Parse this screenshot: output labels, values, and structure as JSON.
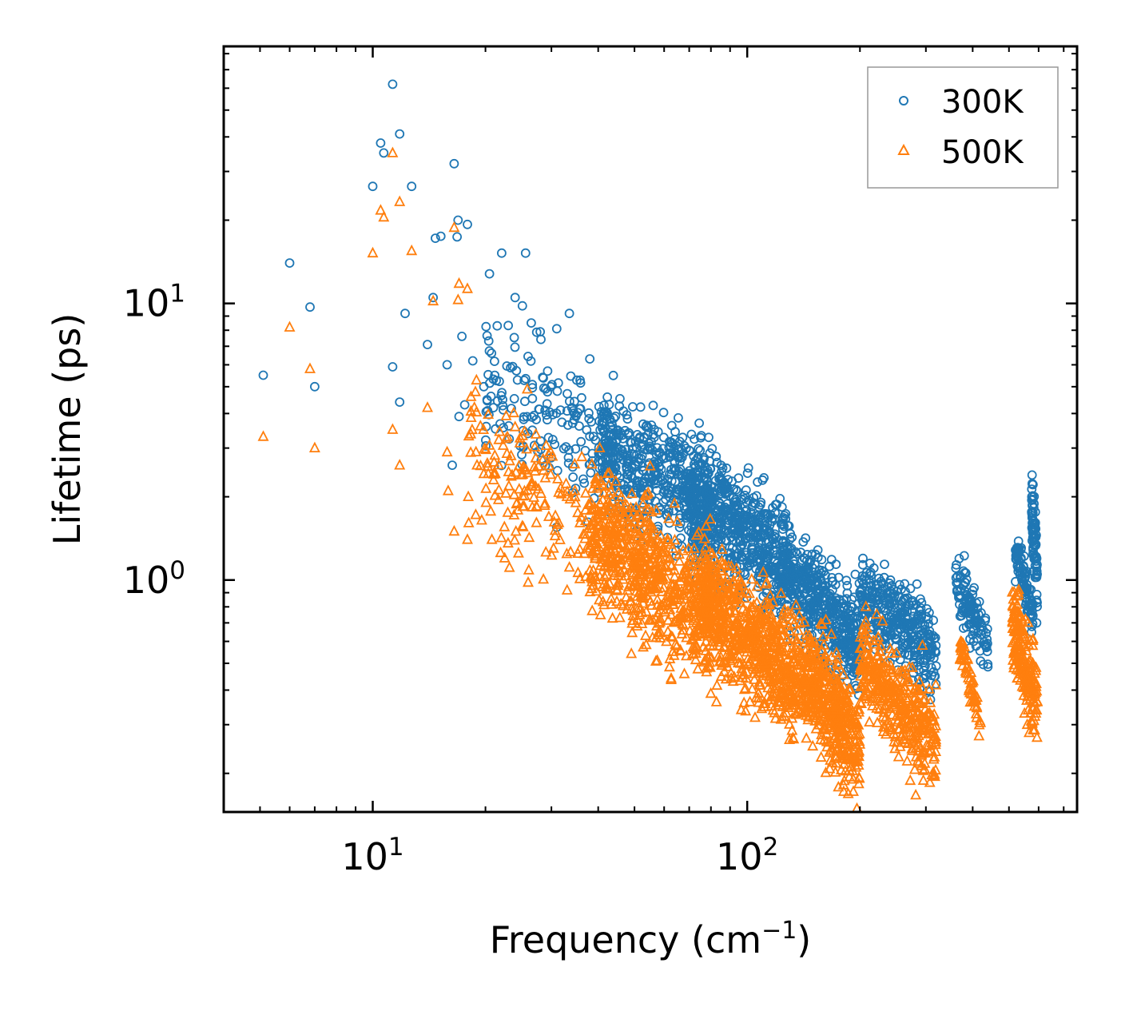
{
  "chart_data": {
    "type": "scatter",
    "title": "",
    "xlabel": "Frequency (cm",
    "xlabel_sup": "−1",
    "xlabel_close": ")",
    "ylabel": "Lifetime (ps)",
    "xscale": "log",
    "yscale": "log",
    "xlim": [
      4.0,
      760
    ],
    "ylim": [
      0.145,
      85
    ],
    "x_ticks": [
      {
        "base": "10",
        "exp": "1"
      },
      {
        "base": "10",
        "exp": "2"
      }
    ],
    "y_ticks": [
      {
        "base": "10",
        "exp": "0"
      },
      {
        "base": "10",
        "exp": "1"
      }
    ],
    "legend_position": "top-right",
    "series": [
      {
        "name": "300K",
        "marker": "circle",
        "color": "#1f77b4",
        "points": [
          [
            5.1,
            5.5
          ],
          [
            6.0,
            14.0
          ],
          [
            6.8,
            9.7
          ],
          [
            7.0,
            5.0
          ],
          [
            10.0,
            26.5
          ],
          [
            10.5,
            38.0
          ],
          [
            10.7,
            35.0
          ],
          [
            11.3,
            62.0
          ],
          [
            11.8,
            41.0
          ],
          [
            12.2,
            9.2
          ],
          [
            12.7,
            26.5
          ],
          [
            11.3,
            5.9
          ],
          [
            11.8,
            4.4
          ],
          [
            14.0,
            7.1
          ],
          [
            14.5,
            10.5
          ],
          [
            14.7,
            17.2
          ],
          [
            15.2,
            17.5
          ],
          [
            15.8,
            6.0
          ],
          [
            16.5,
            32.0
          ],
          [
            16.9,
            20.0
          ],
          [
            17.9,
            19.3
          ],
          [
            16.8,
            17.4
          ],
          [
            17.3,
            7.6
          ],
          [
            18.5,
            6.2
          ],
          [
            20.5,
            12.8
          ],
          [
            22.1,
            15.2
          ],
          [
            25.6,
            15.2
          ],
          [
            21.5,
            8.3
          ],
          [
            24.0,
            10.5
          ],
          [
            25.1,
            9.8
          ],
          [
            26.5,
            8.5
          ],
          [
            28.0,
            7.9
          ],
          [
            31.0,
            8.1
          ],
          [
            33.5,
            9.2
          ],
          [
            38.0,
            6.3
          ],
          [
            16.3,
            2.6
          ],
          [
            17.0,
            3.9
          ],
          [
            17.6,
            4.3
          ],
          [
            19.8,
            5.0
          ],
          [
            21.0,
            4.2
          ]
        ],
        "clusters": [
          {
            "x_range": [
              20,
              45
            ],
            "y_center": 3.8,
            "y_spread": 0.35,
            "count": 180
          },
          {
            "x_range": [
              40,
              80
            ],
            "y_center": 2.4,
            "y_spread": 0.3,
            "count": 500
          },
          {
            "x_range": [
              70,
              130
            ],
            "y_center": 1.5,
            "y_spread": 0.3,
            "count": 650
          },
          {
            "x_range": [
              130,
              200
            ],
            "y_center": 0.78,
            "y_spread": 0.25,
            "count": 450
          },
          {
            "x_range": [
              200,
              320
            ],
            "y_center": 0.7,
            "y_spread": 0.22,
            "count": 350
          },
          {
            "x_range": [
              360,
              440
            ],
            "y_center": 0.76,
            "y_spread": 0.15,
            "count": 120
          },
          {
            "x_range": [
              520,
              580
            ],
            "y_center": 1.0,
            "y_spread": 0.12,
            "count": 100
          },
          {
            "x_range": [
              575,
              595
            ],
            "y_center": 1.4,
            "y_spread": 0.2,
            "count": 90
          }
        ]
      },
      {
        "name": "500K",
        "marker": "triangle",
        "color": "#ff7f0e",
        "points": [
          [
            5.1,
            3.3
          ],
          [
            6.0,
            8.2
          ],
          [
            6.8,
            5.8
          ],
          [
            7.0,
            3.0
          ],
          [
            10.0,
            15.2
          ],
          [
            10.5,
            21.7
          ],
          [
            10.7,
            20.5
          ],
          [
            11.3,
            35.0
          ],
          [
            11.8,
            23.3
          ],
          [
            12.7,
            15.5
          ],
          [
            11.3,
            3.5
          ],
          [
            11.8,
            2.6
          ],
          [
            14.0,
            4.2
          ],
          [
            14.5,
            10.2
          ],
          [
            15.8,
            2.9
          ],
          [
            16.5,
            18.8
          ],
          [
            17.0,
            11.8
          ],
          [
            17.9,
            11.3
          ],
          [
            16.9,
            10.3
          ],
          [
            15.9,
            2.1
          ],
          [
            16.5,
            1.5
          ],
          [
            17.9,
            1.4
          ],
          [
            18.0,
            2.0
          ],
          [
            18.3,
            4.6
          ],
          [
            20.8,
            1.4
          ],
          [
            22.5,
            1.2
          ],
          [
            24.5,
            1.25
          ],
          [
            26.0,
            0.98
          ]
        ],
        "clusters": [
          {
            "x_range": [
              18,
              40
            ],
            "y_center": 2.1,
            "y_spread": 0.35,
            "count": 180
          },
          {
            "x_range": [
              38,
              80
            ],
            "y_center": 1.05,
            "y_spread": 0.35,
            "count": 700
          },
          {
            "x_range": [
              75,
              140
            ],
            "y_center": 0.62,
            "y_spread": 0.3,
            "count": 700
          },
          {
            "x_range": [
              140,
              200
            ],
            "y_center": 0.34,
            "y_spread": 0.28,
            "count": 450
          },
          {
            "x_range": [
              200,
              320
            ],
            "y_center": 0.36,
            "y_spread": 0.25,
            "count": 380
          },
          {
            "x_range": [
              370,
              420
            ],
            "y_center": 0.42,
            "y_spread": 0.08,
            "count": 60
          },
          {
            "x_range": [
              510,
              595
            ],
            "y_center": 0.5,
            "y_spread": 0.22,
            "count": 200
          }
        ]
      }
    ]
  }
}
